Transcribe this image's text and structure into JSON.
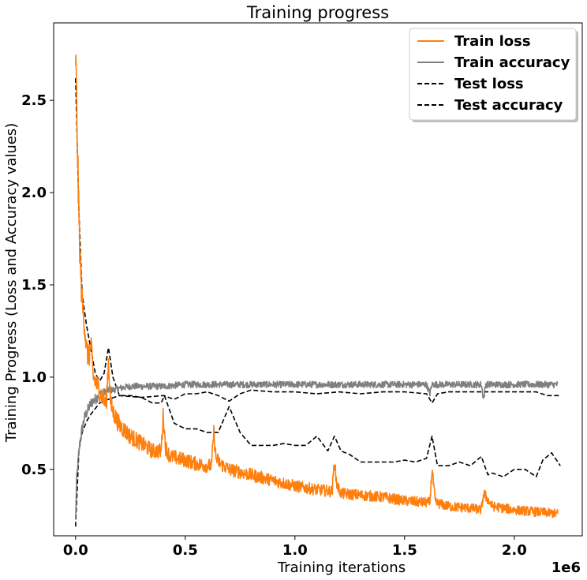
{
  "chart_data": {
    "type": "line",
    "title": "Training progress",
    "xlabel": "Training iterations",
    "ylabel": "Training Progress (Loss and Accuracy values)",
    "x_offset_text": "1e6",
    "xlim": [
      -100000,
      2310000
    ],
    "ylim": [
      0.14,
      2.92
    ],
    "x_ticks": [
      0,
      500000,
      1000000,
      1500000,
      2000000
    ],
    "x_tick_labels": [
      "0.0",
      "0.5",
      "1.0",
      "1.5",
      "2.0"
    ],
    "y_ticks": [
      0.5,
      1.0,
      1.5,
      2.0,
      2.5
    ],
    "y_tick_labels": [
      "0.5",
      "1.0",
      "1.5",
      "2.0",
      "2.5"
    ],
    "grid": false,
    "legend_position": "top-right",
    "series": [
      {
        "name": "Train loss",
        "color": "#ff7f0e",
        "dash": "solid",
        "x": [
          0,
          8000,
          15000,
          22000,
          30000,
          40000,
          50000,
          60000,
          70000,
          80000,
          90000,
          100000,
          120000,
          140000,
          150000,
          160000,
          175000,
          200000,
          250000,
          300000,
          350000,
          390000,
          400000,
          410000,
          430000,
          500000,
          550000,
          600000,
          620000,
          630000,
          640000,
          660000,
          700000,
          800000,
          900000,
          1000000,
          1100000,
          1170000,
          1180000,
          1190000,
          1210000,
          1300000,
          1400000,
          1500000,
          1600000,
          1615000,
          1625000,
          1640000,
          1700000,
          1800000,
          1850000,
          1860000,
          1900000,
          2000000,
          2100000,
          2200000
        ],
        "values": [
          2.75,
          2.3,
          1.85,
          1.6,
          1.4,
          1.3,
          1.15,
          1.1,
          1.18,
          1.0,
          0.98,
          0.95,
          0.9,
          0.85,
          1.1,
          0.85,
          0.8,
          0.74,
          0.68,
          0.64,
          0.6,
          0.6,
          0.8,
          0.62,
          0.57,
          0.55,
          0.53,
          0.52,
          0.52,
          0.7,
          0.56,
          0.53,
          0.5,
          0.47,
          0.44,
          0.41,
          0.39,
          0.38,
          0.55,
          0.42,
          0.37,
          0.36,
          0.35,
          0.33,
          0.32,
          0.32,
          0.5,
          0.32,
          0.3,
          0.29,
          0.28,
          0.37,
          0.3,
          0.28,
          0.27,
          0.26
        ]
      },
      {
        "name": "Train accuracy",
        "color": "#7f7f7f",
        "dash": "solid",
        "x": [
          0,
          5000,
          12000,
          20000,
          30000,
          40000,
          55000,
          70000,
          90000,
          110000,
          130000,
          150000,
          170000,
          200000,
          250000,
          300000,
          400000,
          500000,
          600000,
          700000,
          800000,
          900000,
          1000000,
          1100000,
          1200000,
          1300000,
          1400000,
          1500000,
          1600000,
          1615000,
          1625000,
          1640000,
          1700000,
          1800000,
          1850000,
          1860000,
          1870000,
          1900000,
          2000000,
          2100000,
          2200000
        ],
        "values": [
          0.22,
          0.45,
          0.55,
          0.65,
          0.72,
          0.78,
          0.82,
          0.86,
          0.88,
          0.91,
          0.92,
          0.93,
          0.93,
          0.94,
          0.95,
          0.95,
          0.95,
          0.96,
          0.96,
          0.96,
          0.96,
          0.96,
          0.96,
          0.96,
          0.96,
          0.96,
          0.96,
          0.96,
          0.96,
          0.91,
          0.96,
          0.96,
          0.96,
          0.96,
          0.96,
          0.88,
          0.96,
          0.96,
          0.96,
          0.96,
          0.96
        ]
      },
      {
        "name": "Test loss",
        "color": "#000000",
        "dash": "dashed",
        "x": [
          0,
          15000,
          30000,
          50000,
          70000,
          90000,
          110000,
          130000,
          150000,
          170000,
          200000,
          250000,
          300000,
          350000,
          390000,
          405000,
          450000,
          500000,
          550000,
          600000,
          650000,
          700000,
          750000,
          800000,
          850000,
          900000,
          950000,
          1000000,
          1050000,
          1100000,
          1150000,
          1180000,
          1210000,
          1250000,
          1300000,
          1350000,
          1400000,
          1450000,
          1500000,
          1550000,
          1600000,
          1625000,
          1650000,
          1700000,
          1750000,
          1800000,
          1850000,
          1880000,
          1900000,
          1950000,
          2000000,
          2050000,
          2100000,
          2130000,
          2170000,
          2210000
        ],
        "values": [
          2.62,
          1.9,
          1.45,
          1.28,
          1.15,
          1.02,
          0.98,
          1.02,
          1.16,
          1.0,
          0.9,
          0.9,
          0.89,
          0.86,
          0.86,
          0.9,
          0.75,
          0.72,
          0.72,
          0.7,
          0.7,
          0.84,
          0.7,
          0.63,
          0.63,
          0.63,
          0.64,
          0.63,
          0.63,
          0.68,
          0.6,
          0.68,
          0.6,
          0.58,
          0.54,
          0.54,
          0.54,
          0.54,
          0.55,
          0.54,
          0.56,
          0.68,
          0.52,
          0.52,
          0.54,
          0.52,
          0.57,
          0.47,
          0.48,
          0.46,
          0.5,
          0.5,
          0.46,
          0.55,
          0.59,
          0.52
        ]
      },
      {
        "name": "Test accuracy",
        "color": "#000000",
        "dash": "dashed",
        "x": [
          0,
          15000,
          30000,
          50000,
          70000,
          90000,
          110000,
          130000,
          150000,
          200000,
          300000,
          400000,
          450000,
          500000,
          550000,
          600000,
          650000,
          700000,
          750000,
          800000,
          900000,
          1000000,
          1100000,
          1200000,
          1300000,
          1400000,
          1500000,
          1600000,
          1625000,
          1650000,
          1700000,
          1800000,
          1900000,
          2000000,
          2100000,
          2150000,
          2210000
        ],
        "values": [
          0.19,
          0.6,
          0.7,
          0.76,
          0.8,
          0.83,
          0.86,
          0.87,
          0.88,
          0.9,
          0.89,
          0.9,
          0.88,
          0.91,
          0.91,
          0.92,
          0.9,
          0.87,
          0.91,
          0.93,
          0.92,
          0.92,
          0.91,
          0.92,
          0.91,
          0.92,
          0.92,
          0.91,
          0.86,
          0.91,
          0.92,
          0.92,
          0.92,
          0.92,
          0.92,
          0.9,
          0.9
        ]
      }
    ]
  }
}
